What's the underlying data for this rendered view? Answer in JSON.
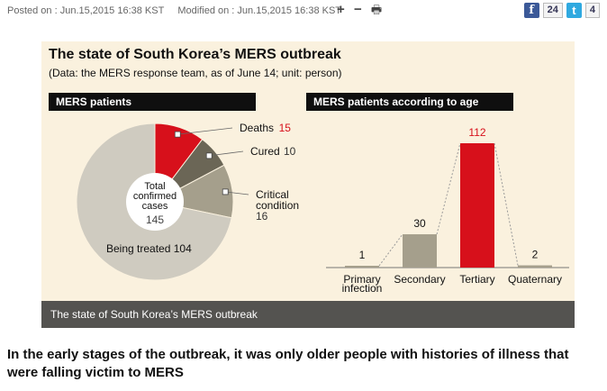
{
  "meta": {
    "posted_label": "Posted on :",
    "posted_date": "Jun.15,2015 16:38 KST",
    "modified_label": "Modified on :",
    "modified_date": "Jun.15,2015 16:38 KST"
  },
  "tools": {
    "zoom_in": "+",
    "zoom_out": "−",
    "print": "🖶"
  },
  "social": {
    "facebook_glyph": "f",
    "facebook_count": "24",
    "twitter_glyph": "t",
    "twitter_count": "4"
  },
  "figure": {
    "title": "The state of South Korea’s MERS outbreak",
    "subtitle": "(Data: the MERS response team, as of June 14; unit: person)",
    "caption": "The state of South Korea’s MERS outbreak"
  },
  "chart_data": [
    {
      "type": "pie",
      "title": "MERS patients",
      "center_label_lines": [
        "Total",
        "confirmed",
        "cases"
      ],
      "center_value": "145",
      "slices": [
        {
          "label": "Deaths",
          "value": 15,
          "color": "#d7101b"
        },
        {
          "label": "Cured",
          "value": 10,
          "color": "#6b6656"
        },
        {
          "label": "Critical condition",
          "label_lines": [
            "Critical",
            "condition"
          ],
          "value": 16,
          "color": "#a59f8c"
        },
        {
          "label": "Being treated",
          "value": 104,
          "color": "#cfcbc0"
        }
      ]
    },
    {
      "type": "bar",
      "title": "MERS patients according to age",
      "categories": [
        "Primary infection",
        "Secondary",
        "Tertiary",
        "Quaternary"
      ],
      "category_lines": [
        [
          "Primary",
          "infection"
        ],
        [
          "Secondary"
        ],
        [
          "Tertiary"
        ],
        [
          "Quaternary"
        ]
      ],
      "values": [
        1,
        30,
        112,
        2
      ],
      "colors": [
        "#a59f8c",
        "#a59f8c",
        "#d7101b",
        "#a59f8c"
      ],
      "ylim": [
        0,
        112
      ]
    }
  ],
  "headline": "In the early stages of the outbreak, it was only older people with histories of illness that were falling victim to MERS"
}
